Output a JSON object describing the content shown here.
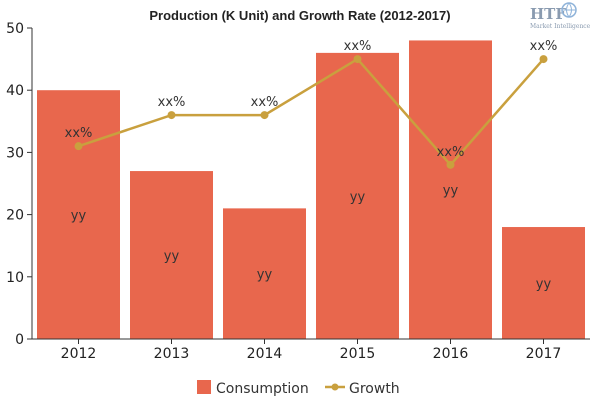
{
  "chart_data": {
    "type": "bar",
    "title": "Production (K Unit) and Growth Rate (2012-2017)",
    "categories": [
      "2012",
      "2013",
      "2014",
      "2015",
      "2016",
      "2017"
    ],
    "ylim": [
      0,
      50
    ],
    "yticks": [
      "0",
      "10",
      "20",
      "30",
      "40",
      "50"
    ],
    "grid": false,
    "legend_position": "bottom-center",
    "series": [
      {
        "name": "Consumption",
        "type": "bar",
        "color": "#e8674d",
        "values": [
          40,
          27,
          21,
          46,
          48,
          18
        ],
        "labels": [
          "yy",
          "yy",
          "yy",
          "yy",
          "yy",
          "yy"
        ]
      },
      {
        "name": "Growth",
        "type": "line",
        "color": "#c9a03e",
        "values": [
          31,
          36,
          36,
          45,
          28,
          45
        ],
        "labels": [
          "xx%",
          "xx%",
          "xx%",
          "xx%",
          "xx%",
          "xx%"
        ]
      }
    ]
  },
  "watermark": {
    "brand": "HTF",
    "tagline": "Market Intelligence"
  }
}
